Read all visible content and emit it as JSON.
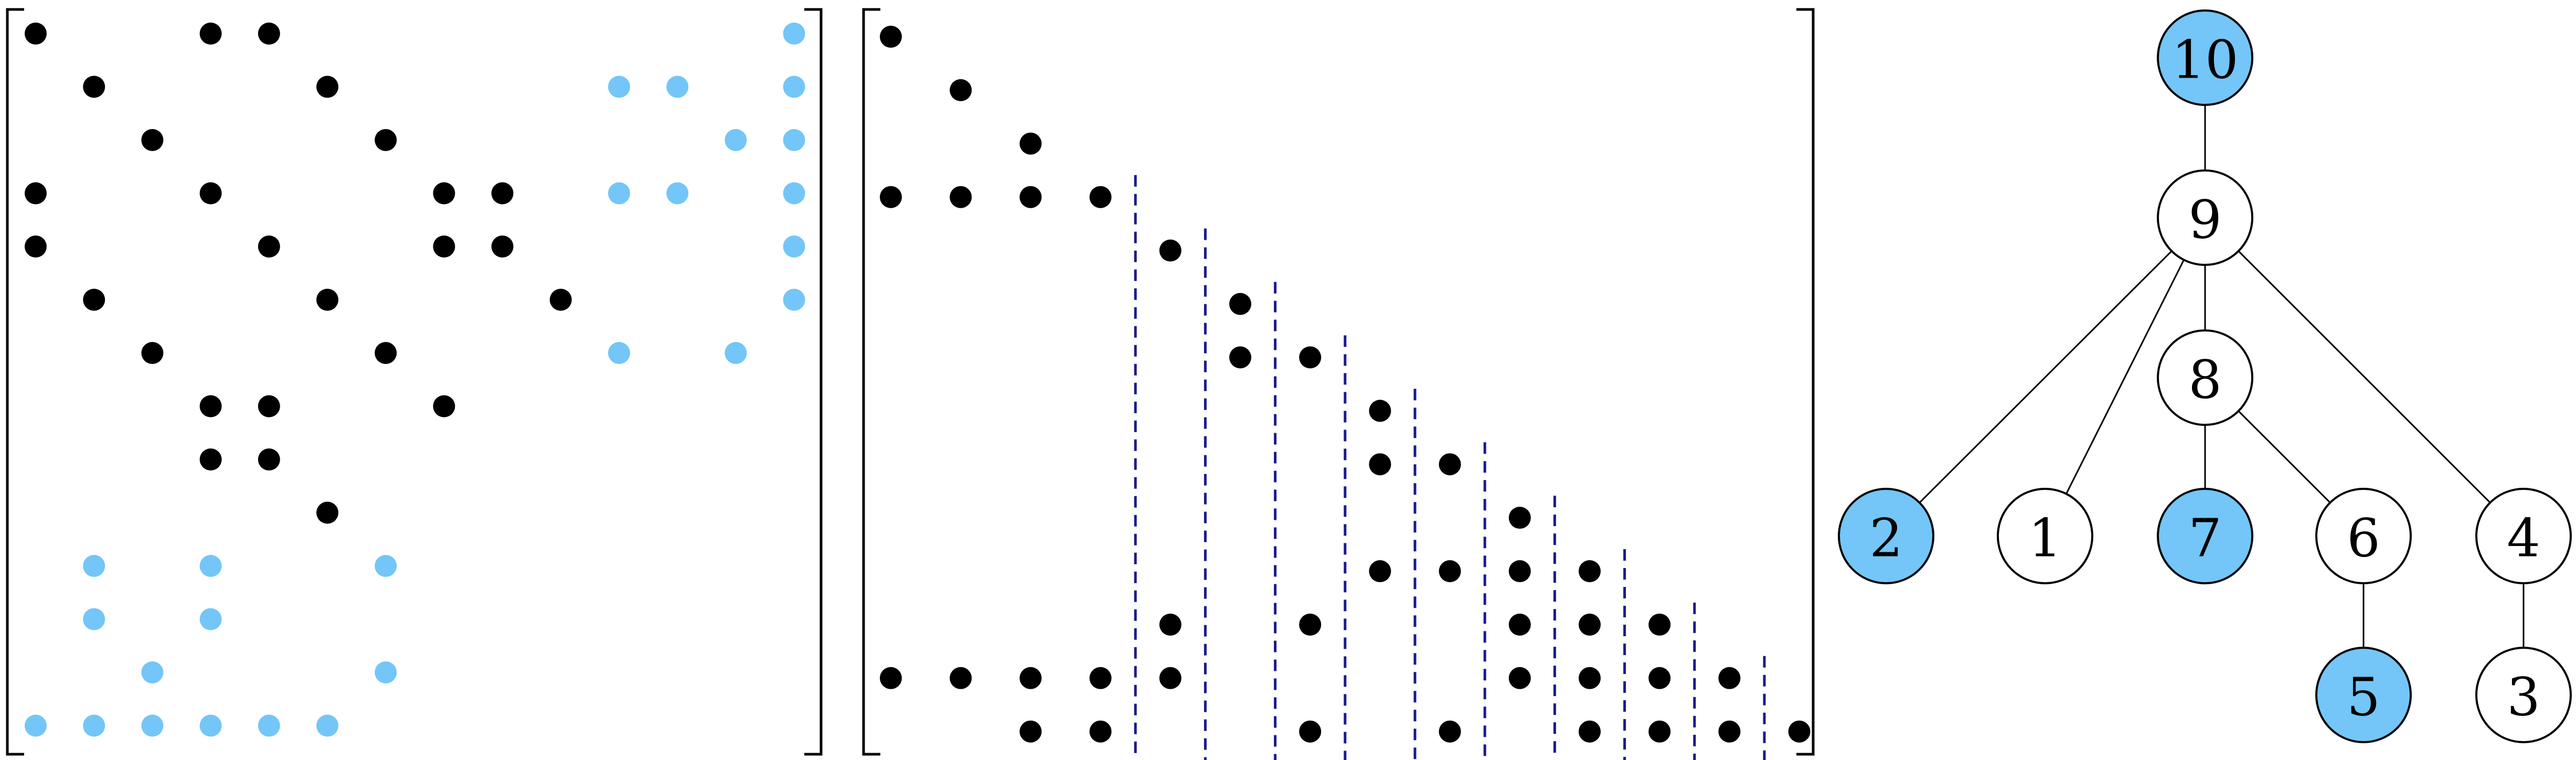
{
  "colors": {
    "black_entry": "#000000",
    "blue_entry": "#73c6f7",
    "dashed_line": "#1a1a8c",
    "node_highlight": "#73c6f7",
    "node_plain": "#ffffff"
  },
  "left_matrix": {
    "size": 14,
    "entries": [
      {
        "row": 1,
        "col": 1,
        "color": "black"
      },
      {
        "row": 1,
        "col": 4,
        "color": "black"
      },
      {
        "row": 1,
        "col": 5,
        "color": "black"
      },
      {
        "row": 1,
        "col": 14,
        "color": "blue"
      },
      {
        "row": 2,
        "col": 2,
        "color": "black"
      },
      {
        "row": 2,
        "col": 6,
        "color": "black"
      },
      {
        "row": 2,
        "col": 11,
        "color": "blue"
      },
      {
        "row": 2,
        "col": 12,
        "color": "blue"
      },
      {
        "row": 2,
        "col": 14,
        "color": "blue"
      },
      {
        "row": 3,
        "col": 3,
        "color": "black"
      },
      {
        "row": 3,
        "col": 7,
        "color": "black"
      },
      {
        "row": 3,
        "col": 13,
        "color": "blue"
      },
      {
        "row": 3,
        "col": 14,
        "color": "blue"
      },
      {
        "row": 4,
        "col": 1,
        "color": "black"
      },
      {
        "row": 4,
        "col": 4,
        "color": "black"
      },
      {
        "row": 4,
        "col": 8,
        "color": "black"
      },
      {
        "row": 4,
        "col": 9,
        "color": "black"
      },
      {
        "row": 4,
        "col": 11,
        "color": "blue"
      },
      {
        "row": 4,
        "col": 12,
        "color": "blue"
      },
      {
        "row": 4,
        "col": 14,
        "color": "blue"
      },
      {
        "row": 5,
        "col": 1,
        "color": "black"
      },
      {
        "row": 5,
        "col": 5,
        "color": "black"
      },
      {
        "row": 5,
        "col": 8,
        "color": "black"
      },
      {
        "row": 5,
        "col": 9,
        "color": "black"
      },
      {
        "row": 5,
        "col": 14,
        "color": "blue"
      },
      {
        "row": 6,
        "col": 2,
        "color": "black"
      },
      {
        "row": 6,
        "col": 6,
        "color": "black"
      },
      {
        "row": 6,
        "col": 10,
        "color": "black"
      },
      {
        "row": 6,
        "col": 14,
        "color": "blue"
      },
      {
        "row": 7,
        "col": 3,
        "color": "black"
      },
      {
        "row": 7,
        "col": 7,
        "color": "black"
      },
      {
        "row": 7,
        "col": 11,
        "color": "blue"
      },
      {
        "row": 7,
        "col": 13,
        "color": "blue"
      },
      {
        "row": 8,
        "col": 4,
        "color": "black"
      },
      {
        "row": 8,
        "col": 5,
        "color": "black"
      },
      {
        "row": 8,
        "col": 8,
        "color": "black"
      },
      {
        "row": 9,
        "col": 4,
        "color": "black"
      },
      {
        "row": 9,
        "col": 5,
        "color": "black"
      },
      {
        "row": 10,
        "col": 6,
        "color": "black"
      },
      {
        "row": 11,
        "col": 2,
        "color": "blue"
      },
      {
        "row": 11,
        "col": 4,
        "color": "blue"
      },
      {
        "row": 11,
        "col": 7,
        "color": "blue"
      },
      {
        "row": 12,
        "col": 2,
        "color": "blue"
      },
      {
        "row": 12,
        "col": 4,
        "color": "blue"
      },
      {
        "row": 13,
        "col": 3,
        "color": "blue"
      },
      {
        "row": 13,
        "col": 7,
        "color": "blue"
      },
      {
        "row": 14,
        "col": 1,
        "color": "blue"
      },
      {
        "row": 14,
        "col": 2,
        "color": "blue"
      },
      {
        "row": 14,
        "col": 3,
        "color": "blue"
      },
      {
        "row": 14,
        "col": 4,
        "color": "blue"
      },
      {
        "row": 14,
        "col": 5,
        "color": "blue"
      },
      {
        "row": 14,
        "col": 6,
        "color": "blue"
      }
    ]
  },
  "right_matrix": {
    "size": 14,
    "dashed_separators": [
      {
        "after_col": 4,
        "from_row": 4
      },
      {
        "after_col": 5,
        "from_row": 5
      },
      {
        "after_col": 6,
        "from_row": 6
      },
      {
        "after_col": 7,
        "from_row": 7
      },
      {
        "after_col": 8,
        "from_row": 8
      },
      {
        "after_col": 9,
        "from_row": 9
      },
      {
        "after_col": 10,
        "from_row": 10
      },
      {
        "after_col": 11,
        "from_row": 11
      },
      {
        "after_col": 12,
        "from_row": 12
      },
      {
        "after_col": 13,
        "from_row": 13
      }
    ],
    "entries": [
      {
        "row": 1,
        "col": 1
      },
      {
        "row": 2,
        "col": 2
      },
      {
        "row": 3,
        "col": 3
      },
      {
        "row": 4,
        "col": 1
      },
      {
        "row": 4,
        "col": 2
      },
      {
        "row": 4,
        "col": 3
      },
      {
        "row": 4,
        "col": 4
      },
      {
        "row": 5,
        "col": 5
      },
      {
        "row": 6,
        "col": 6
      },
      {
        "row": 7,
        "col": 6
      },
      {
        "row": 7,
        "col": 7
      },
      {
        "row": 8,
        "col": 8
      },
      {
        "row": 9,
        "col": 8
      },
      {
        "row": 9,
        "col": 9
      },
      {
        "row": 10,
        "col": 10
      },
      {
        "row": 11,
        "col": 8
      },
      {
        "row": 11,
        "col": 9
      },
      {
        "row": 11,
        "col": 10
      },
      {
        "row": 11,
        "col": 11
      },
      {
        "row": 12,
        "col": 5
      },
      {
        "row": 12,
        "col": 7
      },
      {
        "row": 12,
        "col": 10
      },
      {
        "row": 12,
        "col": 11
      },
      {
        "row": 12,
        "col": 12
      },
      {
        "row": 13,
        "col": 1
      },
      {
        "row": 13,
        "col": 2
      },
      {
        "row": 13,
        "col": 3
      },
      {
        "row": 13,
        "col": 4
      },
      {
        "row": 13,
        "col": 5
      },
      {
        "row": 13,
        "col": 10
      },
      {
        "row": 13,
        "col": 11
      },
      {
        "row": 13,
        "col": 12
      },
      {
        "row": 13,
        "col": 13
      },
      {
        "row": 14,
        "col": 3
      },
      {
        "row": 14,
        "col": 4
      },
      {
        "row": 14,
        "col": 7
      },
      {
        "row": 14,
        "col": 9
      },
      {
        "row": 14,
        "col": 11
      },
      {
        "row": 14,
        "col": 12
      },
      {
        "row": 14,
        "col": 13
      },
      {
        "row": 14,
        "col": 14
      }
    ]
  },
  "tree": {
    "nodes": [
      {
        "id": "10",
        "label": "10",
        "highlighted": true
      },
      {
        "id": "9",
        "label": "9",
        "highlighted": false
      },
      {
        "id": "8",
        "label": "8",
        "highlighted": false
      },
      {
        "id": "2",
        "label": "2",
        "highlighted": true
      },
      {
        "id": "1",
        "label": "1",
        "highlighted": false
      },
      {
        "id": "7",
        "label": "7",
        "highlighted": true
      },
      {
        "id": "6",
        "label": "6",
        "highlighted": false
      },
      {
        "id": "4",
        "label": "4",
        "highlighted": false
      },
      {
        "id": "5",
        "label": "5",
        "highlighted": true
      },
      {
        "id": "3",
        "label": "3",
        "highlighted": false
      }
    ],
    "edges": [
      {
        "from": "10",
        "to": "9"
      },
      {
        "from": "9",
        "to": "2"
      },
      {
        "from": "9",
        "to": "1"
      },
      {
        "from": "9",
        "to": "8"
      },
      {
        "from": "9",
        "to": "4"
      },
      {
        "from": "8",
        "to": "7"
      },
      {
        "from": "8",
        "to": "6"
      },
      {
        "from": "6",
        "to": "5"
      },
      {
        "from": "4",
        "to": "3"
      }
    ]
  }
}
